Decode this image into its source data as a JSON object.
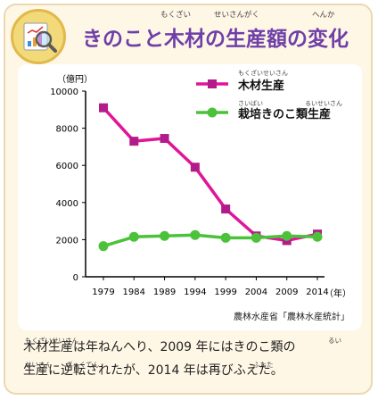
{
  "title": "きのこと木材の生産額の変化",
  "title_ruby": [
    "もくざい",
    "せいさんがく",
    "へんか"
  ],
  "source": "農林水産省「農林水産統計」",
  "caption_lines": [
    "木材生産は年ねんへり、2009 年にはきのこ類の",
    "生産に逆転されたが、2014 年は再びふえた。"
  ],
  "caption_ruby": [
    "もくざいせいさん",
    "るい",
    "せいさん",
    "ぎゃくてん",
    "ふたた"
  ],
  "legend_ruby": [
    "もくざいせいさん",
    "さいばい",
    "るいせいさん"
  ],
  "colors": {
    "timber": "#e0159a",
    "mushroom": "#4cc23a",
    "title": "#6f3fa8"
  },
  "icon": "magnifier-chart-icon",
  "chart_data": {
    "type": "line",
    "title": "",
    "xlabel": "（年）",
    "ylabel": "（億円）",
    "x": [
      "1979",
      "1984",
      "1989",
      "1994",
      "1999",
      "2004",
      "2009",
      "2014"
    ],
    "ylim": [
      0,
      10000
    ],
    "yticks": [
      "0",
      "2000",
      "4000",
      "6000",
      "8000",
      "10000"
    ],
    "grid": false,
    "legend": "top-right",
    "series": [
      {
        "name": "木材生産",
        "marker": "square",
        "values": [
          9100,
          7300,
          7450,
          5900,
          3650,
          2200,
          1950,
          2300
        ]
      },
      {
        "name": "栽培きのこ類生産",
        "marker": "circle",
        "values": [
          1650,
          2150,
          2200,
          2250,
          2100,
          2100,
          2200,
          2150
        ]
      }
    ]
  }
}
